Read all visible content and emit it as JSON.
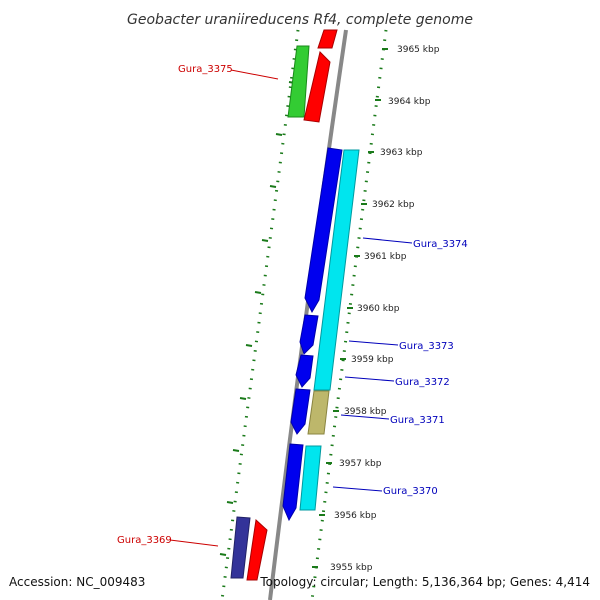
{
  "title": "Geobacter uraniireducens Rf4, complete genome",
  "footer": {
    "accession": "Accession: NC_009483",
    "topology": "Topology: circular; Length: 5,136,364 bp; Genes: 4,414"
  },
  "scale_labels": [
    "3965 kbp",
    "3964 kbp",
    "3963 kbp",
    "3962 kbp",
    "3961 kbp",
    "3960 kbp",
    "3959 kbp",
    "3958 kbp",
    "3957 kbp",
    "3956 kbp",
    "3955 kbp"
  ],
  "gene_labels": [
    {
      "text": "Gura_3375",
      "color": "#cc0000"
    },
    {
      "text": "Gura_3374",
      "color": "#0000bb"
    },
    {
      "text": "Gura_3373",
      "color": "#0000bb"
    },
    {
      "text": "Gura_3372",
      "color": "#0000bb"
    },
    {
      "text": "Gura_3371",
      "color": "#0000bb"
    },
    {
      "text": "Gura_3370",
      "color": "#0000bb"
    },
    {
      "text": "Gura_3369",
      "color": "#cc0000"
    }
  ],
  "colors": {
    "backbone": "#888888",
    "ruler": "#1a7a1a",
    "cds_forward": "#0000ee",
    "cds_reverse": "#ff0000",
    "rna": "#00e5ee",
    "green_gene": "#33cc33",
    "khaki_gene": "#bdb76b",
    "navy_gene": "#333399"
  }
}
